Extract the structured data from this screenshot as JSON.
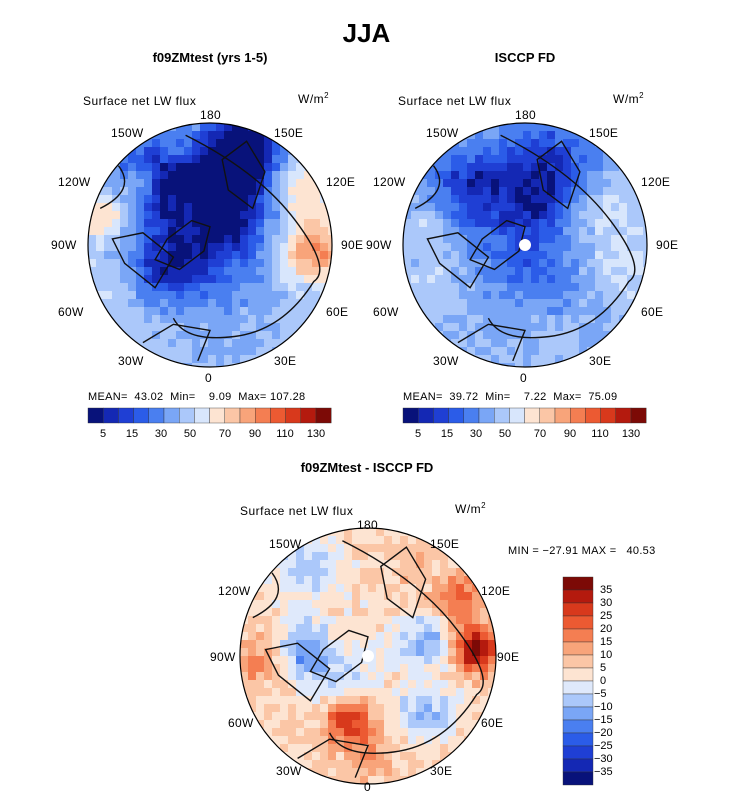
{
  "main_title": "JJA",
  "panels": [
    {
      "title": "f09ZMtest (yrs 1-5)",
      "label": "Surface net LW flux",
      "units": "W/m",
      "units_sup": "2",
      "stats": "MEAN=  43.02  Min=    9.09  Max= 107.28",
      "lon_labels": {
        "n": "180",
        "nw": "150W",
        "ne": "150E",
        "wnw": "120W",
        "ene": "120E",
        "w": "90W",
        "e": "90E",
        "wsw": "60W",
        "ese": "60E",
        "sw": "30W",
        "se": "30E",
        "s": "0"
      },
      "colorbar_ticks": [
        "5",
        "15",
        "30",
        "50",
        "70",
        "90",
        "110",
        "130"
      ]
    },
    {
      "title": "ISCCP FD",
      "label": "Surface net LW flux",
      "units": "W/m",
      "units_sup": "2",
      "stats": "MEAN=  39.72  Min=    7.22  Max=  75.09",
      "lon_labels": {
        "n": "180",
        "nw": "150W",
        "ne": "150E",
        "wnw": "120W",
        "ene": "120E",
        "w": "90W",
        "e": "90E",
        "wsw": "60W",
        "ese": "60E",
        "sw": "30W",
        "se": "30E",
        "s": "0"
      },
      "colorbar_ticks": [
        "5",
        "15",
        "30",
        "50",
        "70",
        "90",
        "110",
        "130"
      ]
    },
    {
      "title": "f09ZMtest - ISCCP FD",
      "label": "Surface net LW flux",
      "units": "W/m",
      "units_sup": "2",
      "stats": "MIN = −27.91 MAX =   40.53",
      "lon_labels": {
        "n": "180",
        "nw": "150W",
        "ne": "150E",
        "wnw": "120W",
        "ene": "120E",
        "w": "90W",
        "e": "90E",
        "wsw": "60W",
        "ese": "60E",
        "sw": "30W",
        "se": "30E",
        "s": "0"
      },
      "colorbar_ticks": [
        "35",
        "30",
        "25",
        "20",
        "15",
        "10",
        "5",
        "0",
        "−5",
        "−10",
        "−15",
        "−20",
        "−25",
        "−30",
        "−35"
      ]
    }
  ],
  "chart_data": [
    {
      "type": "heatmap",
      "title": "f09ZMtest (yrs 1-5)",
      "variable": "Surface net LW flux",
      "units": "W/m2",
      "season": "JJA",
      "projection": "north polar stereographic",
      "mean": 43.02,
      "min": 9.09,
      "max": 107.28,
      "levels": [
        5,
        10,
        15,
        20,
        30,
        40,
        50,
        60,
        70,
        80,
        90,
        100,
        110,
        120,
        130
      ],
      "palette": [
        "#08127a",
        "#1428b4",
        "#1f3fd4",
        "#2b5ce8",
        "#4a7ff0",
        "#7aa6f6",
        "#abc8fa",
        "#d8e6fc",
        "#fde4d2",
        "#fbc6a6",
        "#f8a47a",
        "#f47e52",
        "#ec5a32",
        "#d8391c",
        "#b41a0e",
        "#7c0a06"
      ]
    },
    {
      "type": "heatmap",
      "title": "ISCCP FD",
      "variable": "Surface net LW flux",
      "units": "W/m2",
      "season": "JJA",
      "projection": "north polar stereographic",
      "mean": 39.72,
      "min": 7.22,
      "max": 75.09,
      "levels": [
        5,
        10,
        15,
        20,
        30,
        40,
        50,
        60,
        70,
        80,
        90,
        100,
        110,
        120,
        130
      ],
      "palette": [
        "#08127a",
        "#1428b4",
        "#1f3fd4",
        "#2b5ce8",
        "#4a7ff0",
        "#7aa6f6",
        "#abc8fa",
        "#d8e6fc",
        "#fde4d2",
        "#fbc6a6",
        "#f8a47a",
        "#f47e52",
        "#ec5a32",
        "#d8391c",
        "#b41a0e",
        "#7c0a06"
      ]
    },
    {
      "type": "heatmap",
      "title": "f09ZMtest - ISCCP FD",
      "variable": "Surface net LW flux",
      "units": "W/m2",
      "season": "JJA",
      "projection": "north polar stereographic",
      "min": -27.91,
      "max": 40.53,
      "levels": [
        -35,
        -30,
        -25,
        -20,
        -15,
        -10,
        -5,
        0,
        5,
        10,
        15,
        20,
        25,
        30,
        35
      ],
      "palette": [
        "#08127a",
        "#1428b4",
        "#1f3fd4",
        "#2b5ce8",
        "#4a7ff0",
        "#7aa6f6",
        "#abc8fa",
        "#dfe9fb",
        "#fde4d2",
        "#fbc6a6",
        "#f8a47a",
        "#f47e52",
        "#ec5a32",
        "#d8391c",
        "#b41a0e",
        "#7c0a06"
      ]
    }
  ]
}
